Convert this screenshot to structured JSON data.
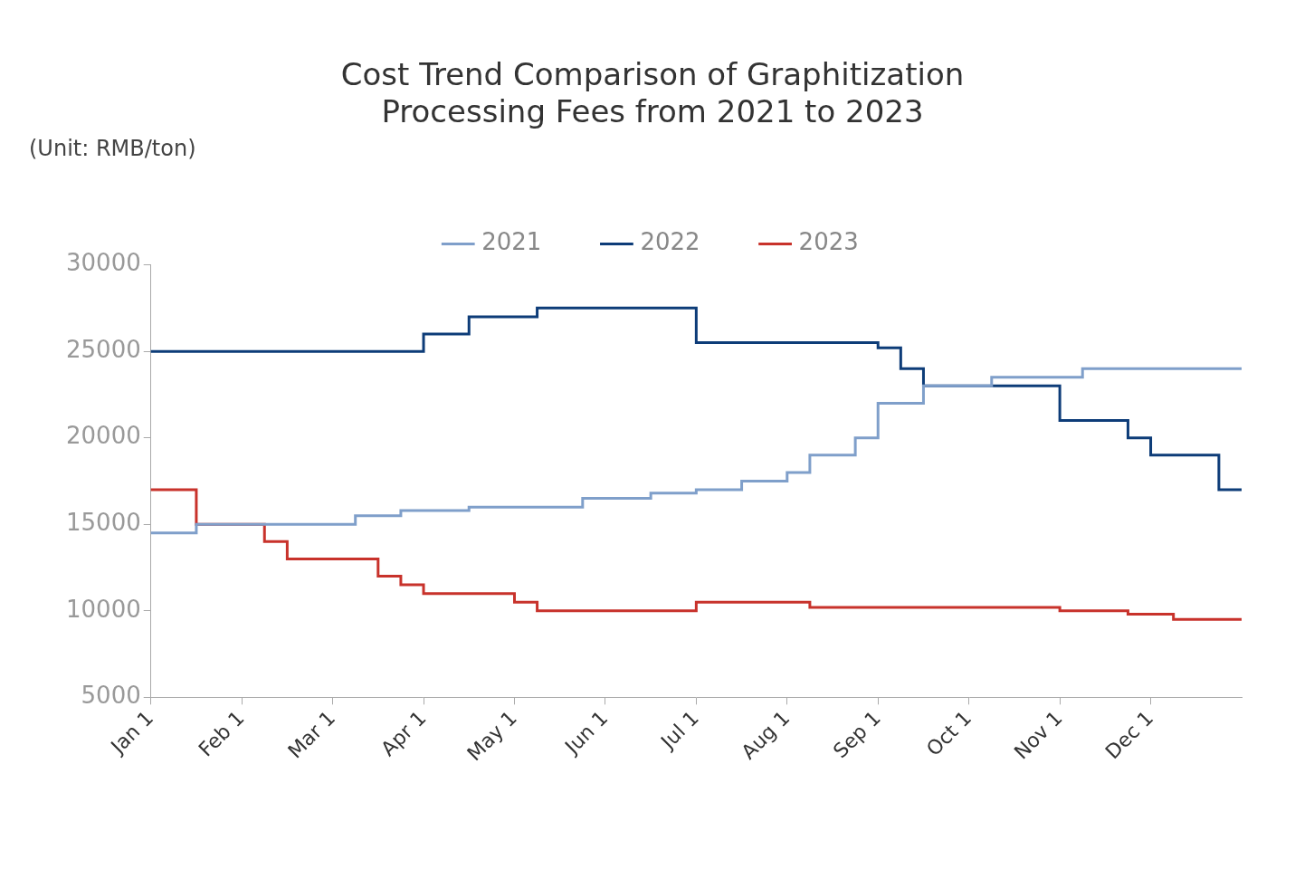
{
  "chart_data": {
    "type": "line",
    "title": [
      "Cost Trend Comparison of Graphitization",
      "Processing Fees from 2021 to 2023"
    ],
    "y_label": "(Unit: RMB/ton)",
    "line_style": "stepped",
    "categories": [
      "Jan 1",
      null,
      null,
      null,
      "Feb 1",
      null,
      null,
      null,
      "Mar 1",
      null,
      null,
      null,
      "Apr 1",
      null,
      null,
      null,
      "May 1",
      null,
      null,
      null,
      "Jun 1",
      null,
      null,
      null,
      "Jul 1",
      null,
      null,
      null,
      "Aug 1",
      null,
      null,
      null,
      "Sep 1",
      null,
      null,
      null,
      "Oct 1",
      null,
      null,
      null,
      "Nov 1",
      null,
      null,
      null,
      "Dec 1",
      null,
      null,
      null,
      null
    ],
    "series": [
      {
        "name": "2021",
        "color": "#7f9fca",
        "values": [
          14500,
          14500,
          15000,
          15000,
          15000,
          15000,
          15000,
          15000,
          15000,
          15500,
          15500,
          15800,
          15800,
          15800,
          16000,
          16000,
          16000,
          16000,
          16000,
          16500,
          16500,
          16500,
          16800,
          16800,
          17000,
          17000,
          17500,
          17500,
          18000,
          19000,
          19000,
          20000,
          22000,
          22000,
          23000,
          23000,
          23000,
          23500,
          23500,
          23500,
          23500,
          24000,
          24000,
          24000,
          24000,
          24000,
          24000,
          24000,
          24000
        ]
      },
      {
        "name": "2022",
        "color": "#0d3c78",
        "values": [
          25000,
          25000,
          25000,
          25000,
          25000,
          25000,
          25000,
          25000,
          25000,
          25000,
          25000,
          25000,
          26000,
          26000,
          27000,
          27000,
          27000,
          27500,
          27500,
          27500,
          27500,
          27500,
          27500,
          27500,
          25500,
          25500,
          25500,
          25500,
          25500,
          25500,
          25500,
          25500,
          25200,
          24000,
          23000,
          23000,
          23000,
          23000,
          23000,
          23000,
          21000,
          21000,
          21000,
          20000,
          19000,
          19000,
          19000,
          17000,
          17000
        ]
      },
      {
        "name": "2023",
        "color": "#c8322b",
        "values": [
          17000,
          17000,
          15000,
          15000,
          15000,
          14000,
          13000,
          13000,
          13000,
          13000,
          12000,
          11500,
          11000,
          11000,
          11000,
          11000,
          10500,
          10000,
          10000,
          10000,
          10000,
          10000,
          10000,
          10000,
          10500,
          10500,
          10500,
          10500,
          10500,
          10200,
          10200,
          10200,
          10200,
          10200,
          10200,
          10200,
          10200,
          10200,
          10200,
          10200,
          10000,
          10000,
          10000,
          9800,
          9800,
          9500,
          9500,
          9500,
          9500
        ]
      }
    ],
    "ylim": [
      5000,
      30000
    ],
    "yticks": [
      5000,
      10000,
      15000,
      20000,
      25000,
      30000
    ],
    "grid": false,
    "legend": "top"
  }
}
